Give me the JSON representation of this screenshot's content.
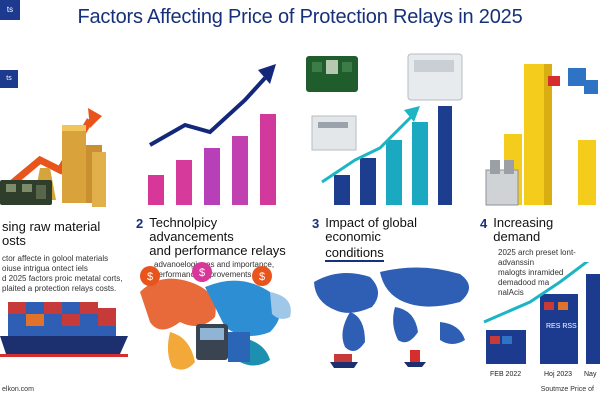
{
  "title": "Factors Affecting Price of Protection Relays in 2025",
  "corner_tags": [
    "ts",
    "ts"
  ],
  "sections": [
    {
      "num": "",
      "title_line1": "sing raw material",
      "title_line2": "osts",
      "desc_lines": [
        "ctor affecte in golool materials",
        "oiuse intrigua ontect iels",
        "d  2025 factors proic metatal corts,",
        "plaited a protection relays costs."
      ]
    },
    {
      "num": "2",
      "title_line1": "Technolpicy advancements",
      "title_line2": "and performance relays",
      "desc_lines": [
        "advanoelogiones and importance,",
        "performance improvements"
      ]
    },
    {
      "num": "3",
      "title_line1": "Impact of global economic",
      "title_line2": "conditions",
      "desc_lines": []
    },
    {
      "num": "4",
      "title_line1": "Increasing demand",
      "title_line2": "",
      "desc_lines": [
        "2025 arch preset lont-advanssin",
        "malogts inramided demadood ma",
        "nalAcis"
      ]
    }
  ],
  "map_markers": [
    "$",
    "$",
    "$"
  ],
  "bar_labels": [
    "FEB 2022",
    "Hoj 2023",
    "Nay"
  ],
  "bar_inner_label": "RES RSS",
  "footer_left": "elkon.com",
  "footer_right": "Soutmze Price of",
  "colors": {
    "title": "#16317a",
    "accent_blue": "#1c3b8f",
    "orange_arrow": "#e8541c",
    "navy_arrow": "#13287a",
    "teal_arrow": "#1bb5c4",
    "pink": "#d8379a",
    "magenta": "#b63ab5",
    "gold": "#e2b43a",
    "yellow": "#f4cc1c",
    "map_blue": "#2e5fb5"
  }
}
